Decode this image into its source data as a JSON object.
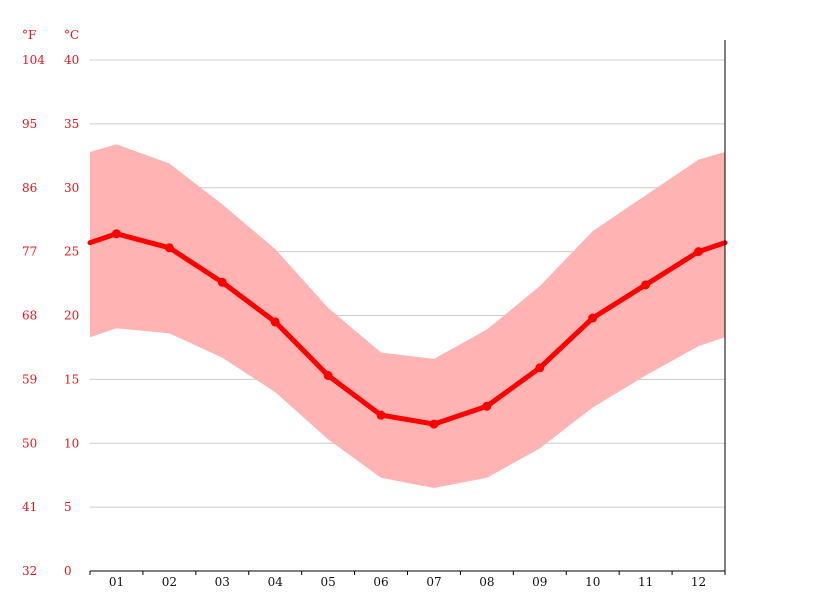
{
  "chart_data": {
    "type": "line",
    "categories": [
      "01",
      "02",
      "03",
      "04",
      "05",
      "06",
      "07",
      "08",
      "09",
      "10",
      "11",
      "12"
    ],
    "series": [
      {
        "values": [
          26.4,
          25.3,
          22.6,
          19.5,
          15.3,
          12.2,
          11.5,
          12.9,
          15.9,
          19.8,
          22.4,
          25.0
        ]
      }
    ],
    "band": {
      "upper": [
        33.4,
        31.9,
        28.7,
        25.2,
        20.6,
        17.1,
        16.6,
        18.9,
        22.3,
        26.6,
        29.4,
        32.2
      ],
      "lower": [
        19.0,
        18.6,
        16.7,
        14.0,
        10.3,
        7.3,
        6.5,
        7.3,
        9.6,
        12.8,
        15.3,
        17.6
      ]
    },
    "ylim": [
      0,
      40
    ],
    "y_ticks_c": [
      "0",
      "5",
      "10",
      "15",
      "20",
      "25",
      "30",
      "35",
      "40"
    ],
    "y_ticks_f": [
      "32",
      "41",
      "50",
      "59",
      "68",
      "77",
      "86",
      "95",
      "104"
    ],
    "unit_f": "°F",
    "unit_c": "°C",
    "grid": true,
    "colors": {
      "line": "#ff0000",
      "band": "#ffb3b3",
      "axis_text": "#e8161c",
      "grid": "#cccccc"
    }
  }
}
